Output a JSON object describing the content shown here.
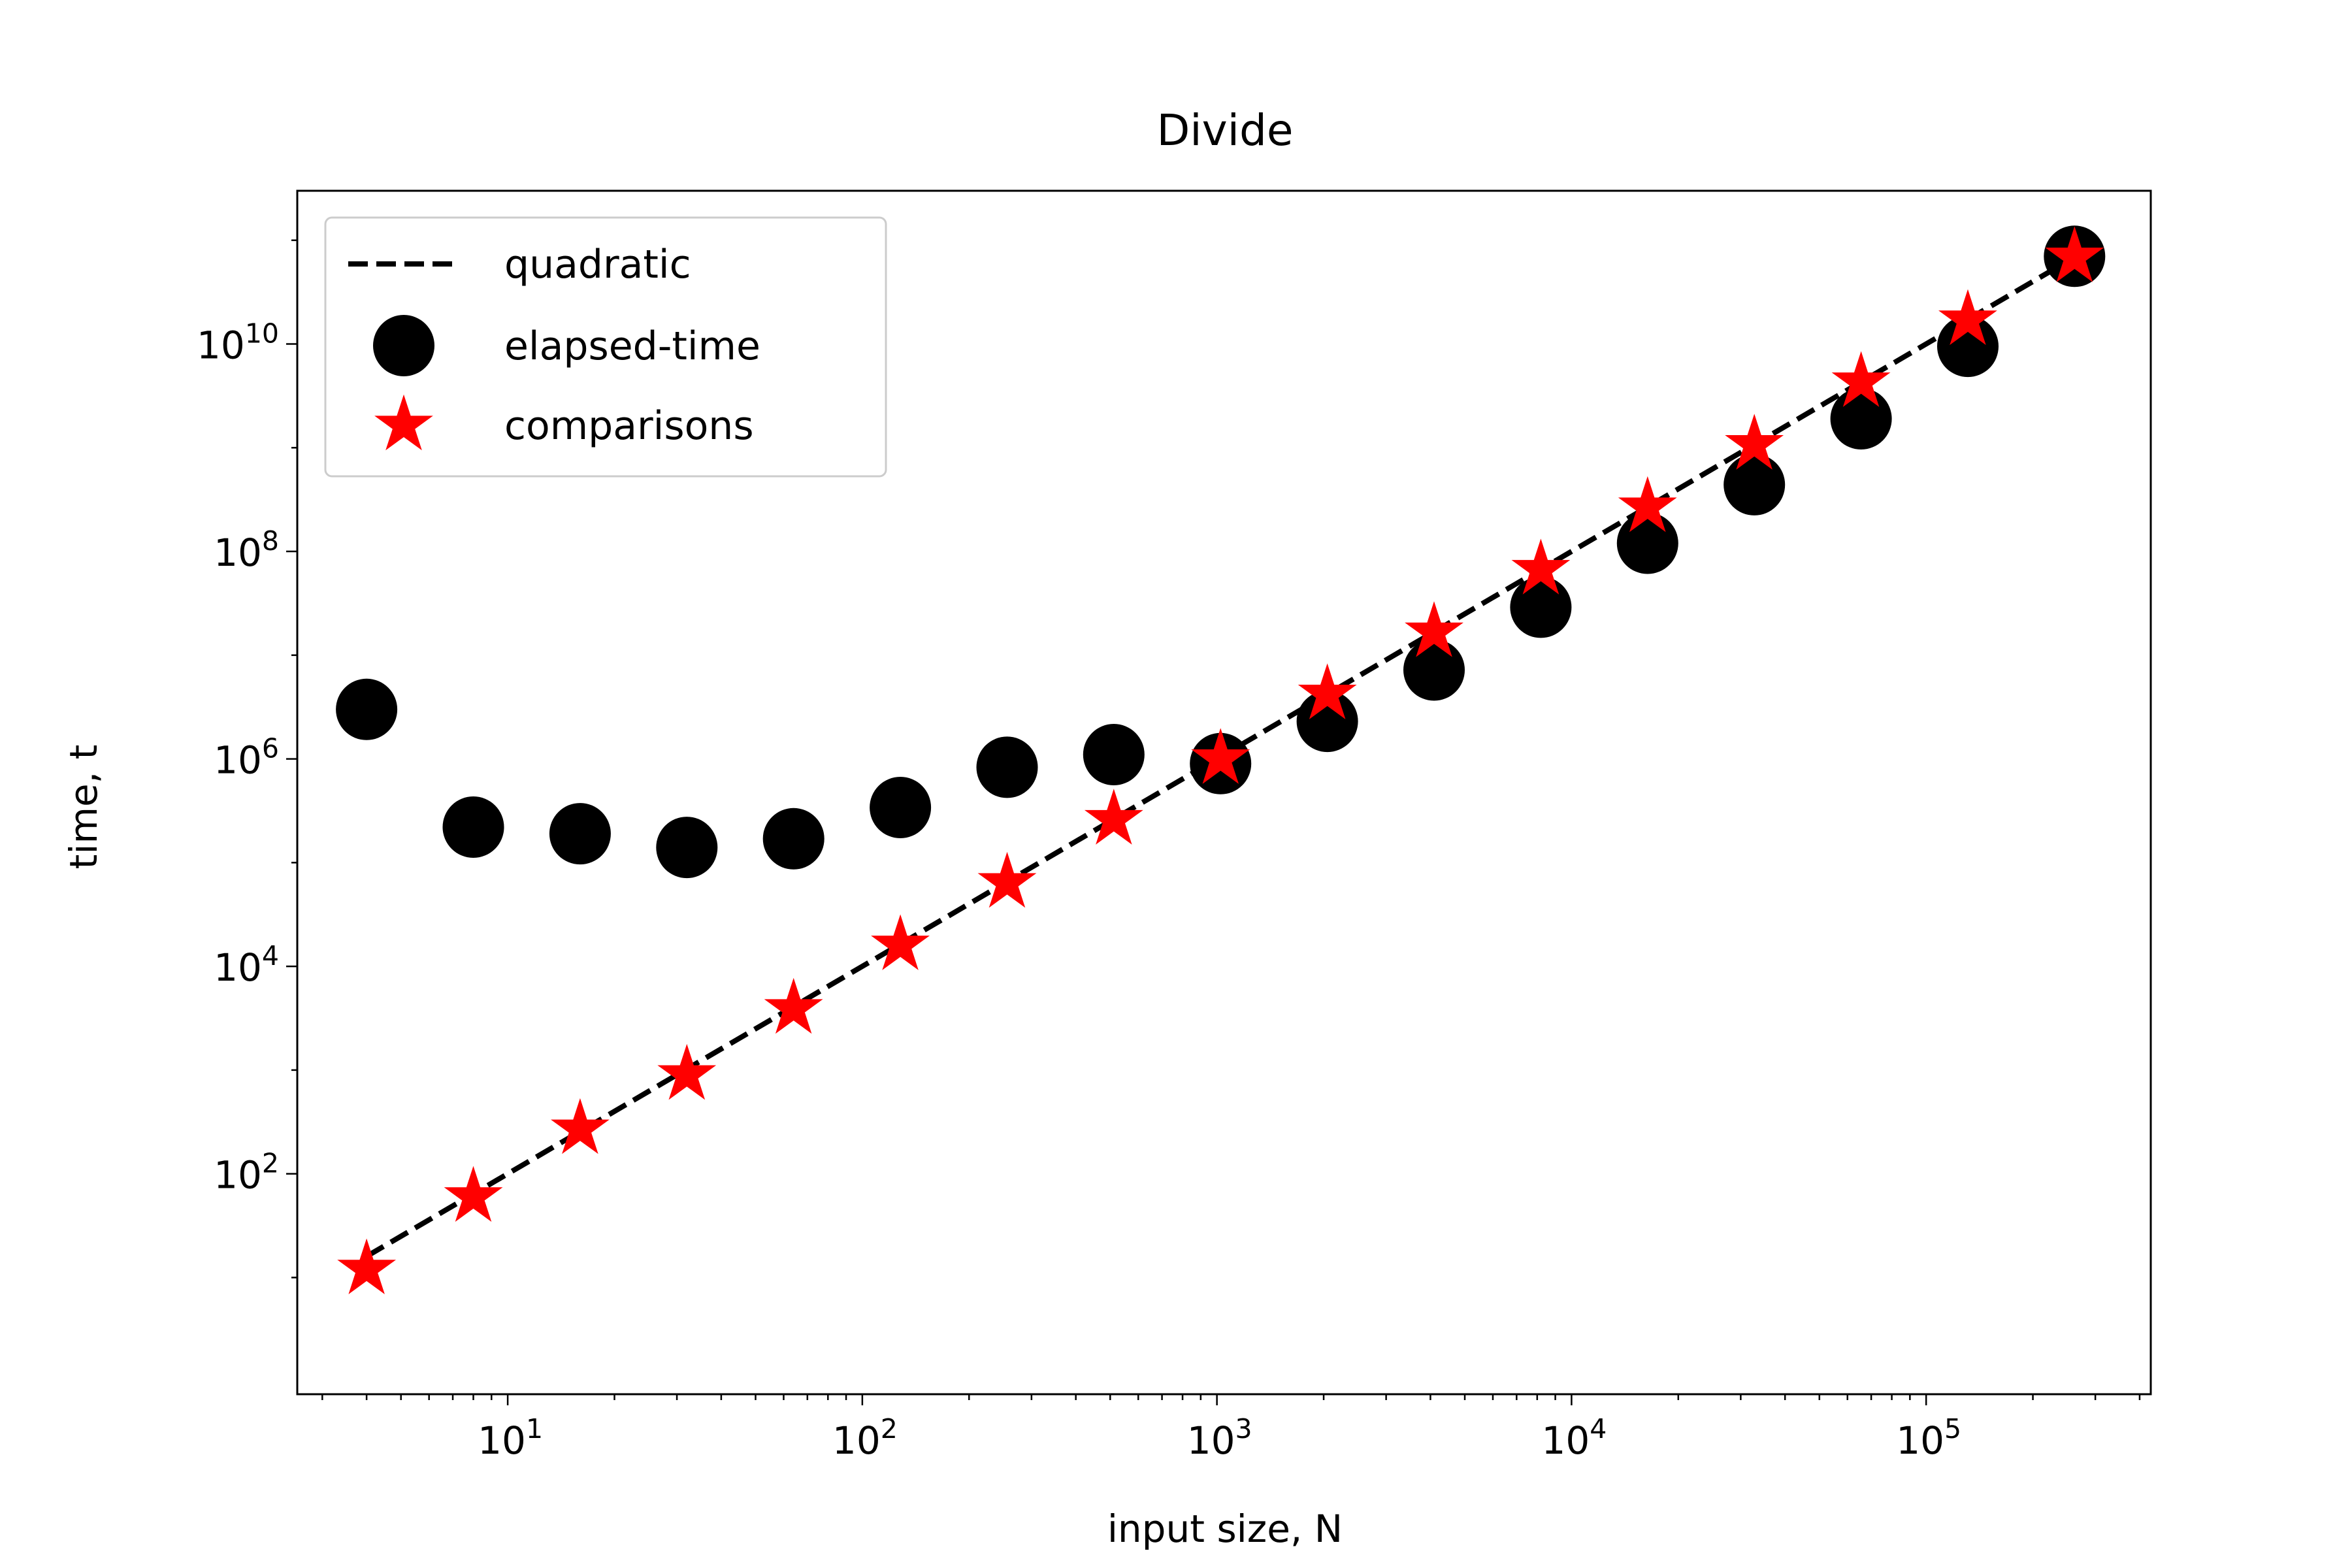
{
  "chart_data": {
    "type": "scatter",
    "title": "Divide",
    "xlabel": "input size, N",
    "ylabel": "time, t",
    "xscale": "log",
    "yscale": "log",
    "xlim": [
      2.55,
      430000
    ],
    "ylim": [
      0.75,
      300000000000.0
    ],
    "x_ticks": [
      {
        "value": 10,
        "base": "10",
        "exp": "1"
      },
      {
        "value": 100,
        "base": "10",
        "exp": "2"
      },
      {
        "value": 1000,
        "base": "10",
        "exp": "3"
      },
      {
        "value": 10000,
        "base": "10",
        "exp": "4"
      },
      {
        "value": 100000,
        "base": "10",
        "exp": "5"
      }
    ],
    "y_ticks": [
      {
        "value": 100,
        "base": "10",
        "exp": "2"
      },
      {
        "value": 10000,
        "base": "10",
        "exp": "4"
      },
      {
        "value": 1000000,
        "base": "10",
        "exp": "6"
      },
      {
        "value": 100000000,
        "base": "10",
        "exp": "8"
      },
      {
        "value": 10000000000,
        "base": "10",
        "exp": "10"
      }
    ],
    "legend_position": "upper-left",
    "grid": false,
    "series": [
      {
        "name": "quadratic",
        "kind": "line",
        "style": "dashed",
        "color": "#000000",
        "x": [
          4,
          262144
        ],
        "y": [
          16,
          68719476736
        ]
      },
      {
        "name": "elapsed-time",
        "kind": "marker",
        "marker": "circle",
        "color": "#000000",
        "x": [
          4,
          8,
          16,
          32,
          64,
          128,
          256,
          512,
          1024,
          2048,
          4096,
          8192,
          16384,
          32768,
          65536,
          131072,
          262144
        ],
        "y": [
          3000000,
          220000,
          190000,
          140000,
          170000,
          340000,
          830000,
          1100000,
          900000,
          2300000,
          7200000,
          29000000,
          120000000,
          440000000,
          1900000000,
          9500000000,
          70000000000
        ]
      },
      {
        "name": "comparisons",
        "kind": "marker",
        "marker": "star",
        "color": "#ff0000",
        "x": [
          4,
          8,
          16,
          32,
          64,
          128,
          256,
          512,
          1024,
          2048,
          4096,
          8192,
          16384,
          32768,
          65536,
          131072,
          262144
        ],
        "y": [
          12,
          60,
          270,
          900,
          3900,
          16000,
          64000,
          260000,
          1000000,
          4200000,
          16700000,
          67000000,
          268000000,
          1070000000,
          4300000000,
          17000000000,
          68700000000
        ]
      }
    ]
  }
}
